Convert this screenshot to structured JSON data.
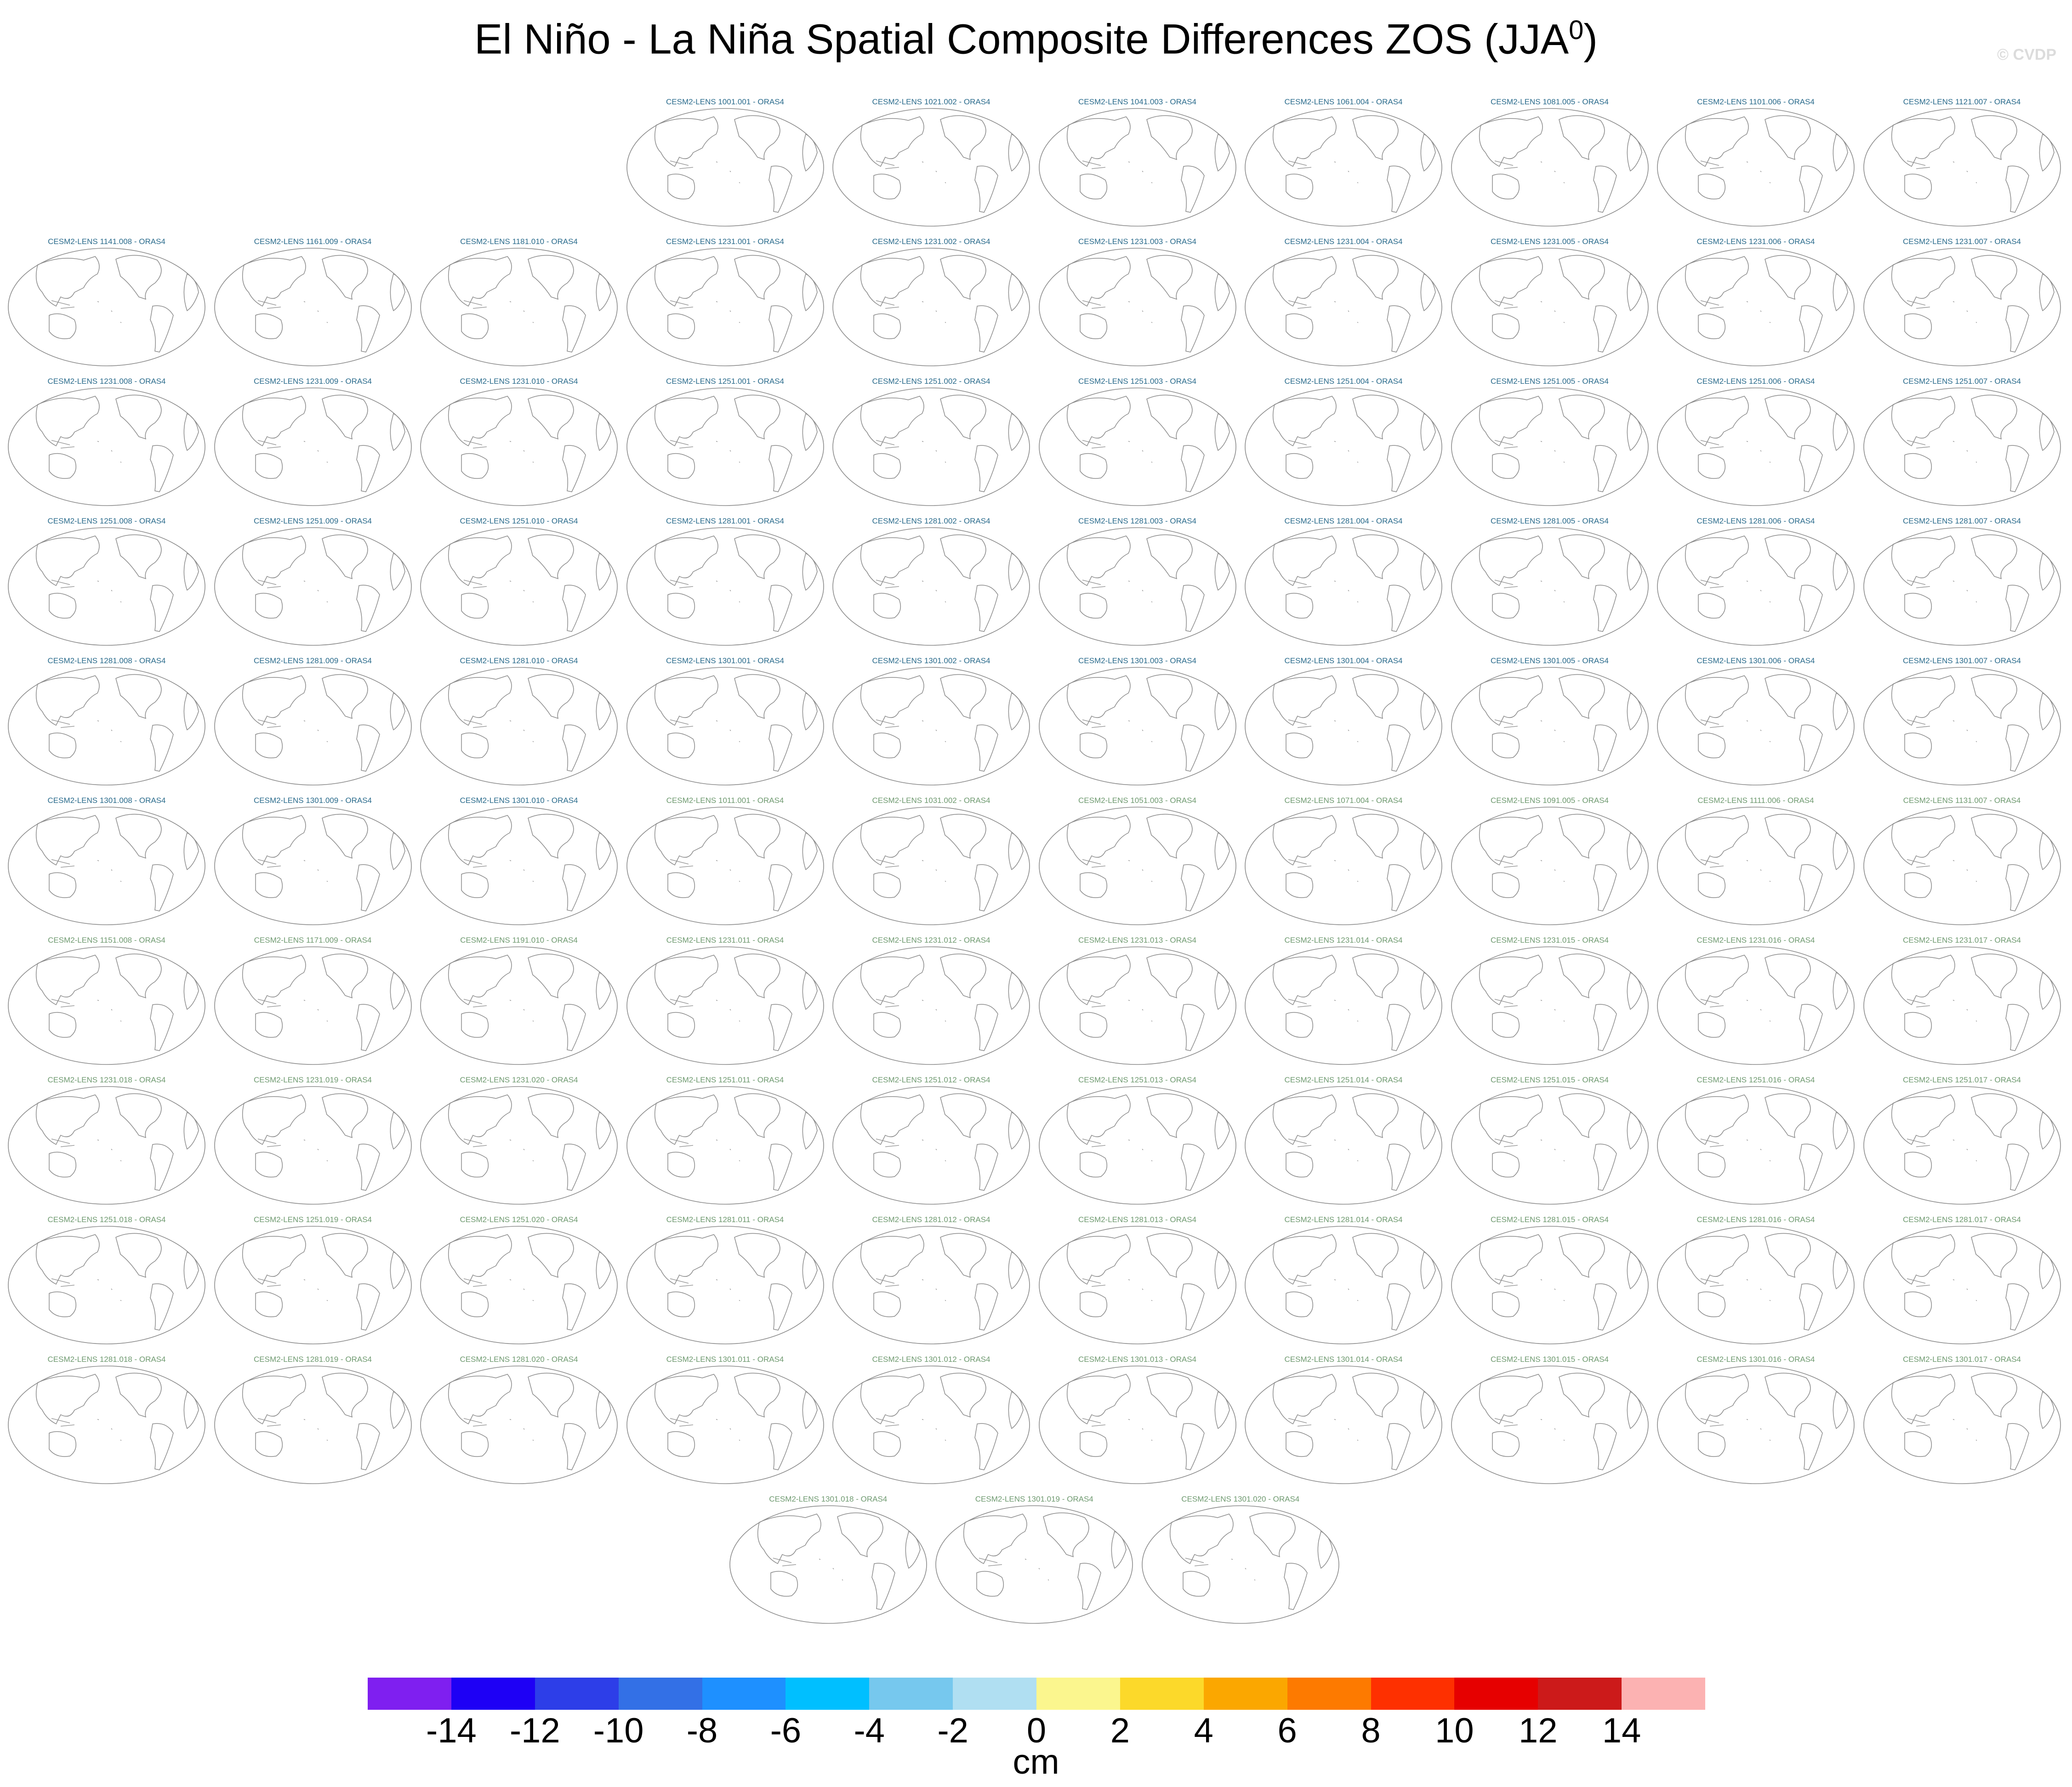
{
  "title": "El Niño - La Niña Spatial Composite Differences ZOS (JJA",
  "title_superscript": "0",
  "title_close": ")",
  "watermark": "© CVDP",
  "panel_rows": [
    {
      "group1": [
        "CESM2-LENS 1001.001 - ORAS4",
        "CESM2-LENS 1021.002 - ORAS4",
        "CESM2-LENS 1041.003 - ORAS4",
        "CESM2-LENS 1061.004 - ORAS4",
        "CESM2-LENS 1081.005 - ORAS4",
        "CESM2-LENS 1101.006 - ORAS4",
        "CESM2-LENS 1121.007 - ORAS4"
      ],
      "group2": []
    },
    {
      "group1": [
        "CESM2-LENS 1141.008 - ORAS4",
        "CESM2-LENS 1161.009 - ORAS4",
        "CESM2-LENS 1181.010 - ORAS4",
        "CESM2-LENS 1231.001 - ORAS4",
        "CESM2-LENS 1231.002 - ORAS4",
        "CESM2-LENS 1231.003 - ORAS4",
        "CESM2-LENS 1231.004 - ORAS4",
        "CESM2-LENS 1231.005 - ORAS4",
        "CESM2-LENS 1231.006 - ORAS4",
        "CESM2-LENS 1231.007 - ORAS4"
      ],
      "group2": []
    },
    {
      "group1": [
        "CESM2-LENS 1231.008 - ORAS4",
        "CESM2-LENS 1231.009 - ORAS4",
        "CESM2-LENS 1231.010 - ORAS4",
        "CESM2-LENS 1251.001 - ORAS4",
        "CESM2-LENS 1251.002 - ORAS4",
        "CESM2-LENS 1251.003 - ORAS4",
        "CESM2-LENS 1251.004 - ORAS4",
        "CESM2-LENS 1251.005 - ORAS4",
        "CESM2-LENS 1251.006 - ORAS4",
        "CESM2-LENS 1251.007 - ORAS4"
      ],
      "group2": []
    },
    {
      "group1": [
        "CESM2-LENS 1251.008 - ORAS4",
        "CESM2-LENS 1251.009 - ORAS4",
        "CESM2-LENS 1251.010 - ORAS4",
        "CESM2-LENS 1281.001 - ORAS4",
        "CESM2-LENS 1281.002 - ORAS4",
        "CESM2-LENS 1281.003 - ORAS4",
        "CESM2-LENS 1281.004 - ORAS4",
        "CESM2-LENS 1281.005 - ORAS4",
        "CESM2-LENS 1281.006 - ORAS4",
        "CESM2-LENS 1281.007 - ORAS4"
      ],
      "group2": []
    },
    {
      "group1": [
        "CESM2-LENS 1281.008 - ORAS4",
        "CESM2-LENS 1281.009 - ORAS4",
        "CESM2-LENS 1281.010 - ORAS4",
        "CESM2-LENS 1301.001 - ORAS4",
        "CESM2-LENS 1301.002 - ORAS4",
        "CESM2-LENS 1301.003 - ORAS4",
        "CESM2-LENS 1301.004 - ORAS4",
        "CESM2-LENS 1301.005 - ORAS4",
        "CESM2-LENS 1301.006 - ORAS4",
        "CESM2-LENS 1301.007 - ORAS4"
      ],
      "group2": []
    },
    {
      "group1": [
        "CESM2-LENS 1301.008 - ORAS4",
        "CESM2-LENS 1301.009 - ORAS4",
        "CESM2-LENS 1301.010 - ORAS4"
      ],
      "group2": [
        "CESM2-LENS 1011.001 - ORAS4",
        "CESM2-LENS 1031.002 - ORAS4",
        "CESM2-LENS 1051.003 - ORAS4",
        "CESM2-LENS 1071.004 - ORAS4",
        "CESM2-LENS 1091.005 - ORAS4",
        "CESM2-LENS 1111.006 - ORAS4",
        "CESM2-LENS 1131.007 - ORAS4"
      ]
    },
    {
      "group1": [],
      "group2": [
        "CESM2-LENS 1151.008 - ORAS4",
        "CESM2-LENS 1171.009 - ORAS4",
        "CESM2-LENS 1191.010 - ORAS4",
        "CESM2-LENS 1231.011 - ORAS4",
        "CESM2-LENS 1231.012 - ORAS4",
        "CESM2-LENS 1231.013 - ORAS4",
        "CESM2-LENS 1231.014 - ORAS4",
        "CESM2-LENS 1231.015 - ORAS4",
        "CESM2-LENS 1231.016 - ORAS4",
        "CESM2-LENS 1231.017 - ORAS4"
      ]
    },
    {
      "group1": [],
      "group2": [
        "CESM2-LENS 1231.018 - ORAS4",
        "CESM2-LENS 1231.019 - ORAS4",
        "CESM2-LENS 1231.020 - ORAS4",
        "CESM2-LENS 1251.011 - ORAS4",
        "CESM2-LENS 1251.012 - ORAS4",
        "CESM2-LENS 1251.013 - ORAS4",
        "CESM2-LENS 1251.014 - ORAS4",
        "CESM2-LENS 1251.015 - ORAS4",
        "CESM2-LENS 1251.016 - ORAS4",
        "CESM2-LENS 1251.017 - ORAS4"
      ]
    },
    {
      "group1": [],
      "group2": [
        "CESM2-LENS 1251.018 - ORAS4",
        "CESM2-LENS 1251.019 - ORAS4",
        "CESM2-LENS 1251.020 - ORAS4",
        "CESM2-LENS 1281.011 - ORAS4",
        "CESM2-LENS 1281.012 - ORAS4",
        "CESM2-LENS 1281.013 - ORAS4",
        "CESM2-LENS 1281.014 - ORAS4",
        "CESM2-LENS 1281.015 - ORAS4",
        "CESM2-LENS 1281.016 - ORAS4",
        "CESM2-LENS 1281.017 - ORAS4"
      ]
    },
    {
      "group1": [],
      "group2": [
        "CESM2-LENS 1281.018 - ORAS4",
        "CESM2-LENS 1281.019 - ORAS4",
        "CESM2-LENS 1281.020 - ORAS4",
        "CESM2-LENS 1301.011 - ORAS4",
        "CESM2-LENS 1301.012 - ORAS4",
        "CESM2-LENS 1301.013 - ORAS4",
        "CESM2-LENS 1301.014 - ORAS4",
        "CESM2-LENS 1301.015 - ORAS4",
        "CESM2-LENS 1301.016 - ORAS4",
        "CESM2-LENS 1301.017 - ORAS4"
      ]
    },
    {
      "group1": [],
      "group2": [
        "CESM2-LENS 1301.018 - ORAS4",
        "CESM2-LENS 1301.019 - ORAS4",
        "CESM2-LENS 1301.020 - ORAS4"
      ]
    }
  ],
  "colors": {
    "group1_label": "#2a6b8c",
    "group2_label": "#6f9a70",
    "map_outline": "#8c8c8c"
  },
  "colorbar": {
    "colors": [
      "#7f1ff0",
      "#1e00f5",
      "#2d3ee8",
      "#3370e6",
      "#1e90ff",
      "#00bfff",
      "#76c8ee",
      "#b0dff2",
      "#fbf68e",
      "#fcd92a",
      "#fba700",
      "#fd7a00",
      "#fe3000",
      "#e60000",
      "#cc1a1a",
      "#fcb2b2"
    ],
    "tick_labels": [
      "-14",
      "-12",
      "-10",
      "-8",
      "-6",
      "-4",
      "-2",
      "0",
      "2",
      "4",
      "6",
      "8",
      "10",
      "12",
      "14"
    ],
    "units": "cm"
  }
}
